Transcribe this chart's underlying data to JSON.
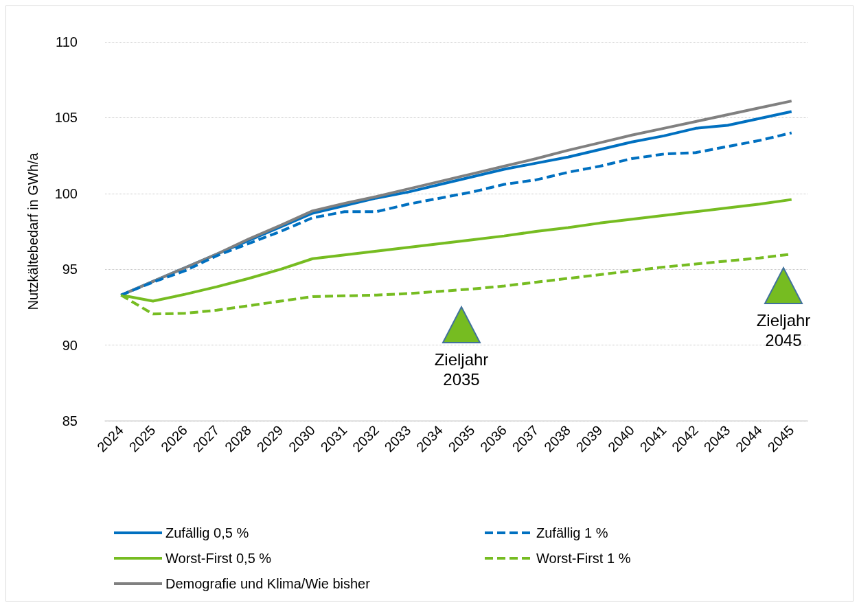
{
  "chart_data": {
    "type": "line",
    "ylabel": "Nutzkältebedarf in GWh/a",
    "categories": [
      "2024",
      "2025",
      "2026",
      "2027",
      "2028",
      "2029",
      "2030",
      "2031",
      "2032",
      "2033",
      "2034",
      "2035",
      "2036",
      "2037",
      "2038",
      "2039",
      "2040",
      "2041",
      "2042",
      "2043",
      "2044",
      "2045"
    ],
    "series": [
      {
        "name": "Zufällig 0,5 %",
        "color": "#0070c0",
        "line_style": "solid",
        "values": [
          93.3,
          94.2,
          95.1,
          96.0,
          96.9,
          97.8,
          98.7,
          99.2,
          99.7,
          100.1,
          100.6,
          101.1,
          101.6,
          102.0,
          102.4,
          102.9,
          103.4,
          103.8,
          104.3,
          104.5,
          104.95,
          105.4
        ]
      },
      {
        "name": "Zufällig 1 %",
        "color": "#0070c0",
        "line_style": "dashed",
        "values": [
          93.3,
          94.15,
          94.9,
          95.9,
          96.7,
          97.5,
          98.4,
          98.8,
          98.8,
          99.3,
          99.7,
          100.1,
          100.6,
          100.9,
          101.4,
          101.8,
          102.3,
          102.6,
          102.7,
          103.1,
          103.5,
          104.0
        ]
      },
      {
        "name": "Worst-First 0,5 %",
        "color": "#76bc21",
        "line_style": "solid",
        "values": [
          93.3,
          92.9,
          93.35,
          93.85,
          94.4,
          95.0,
          95.7,
          95.95,
          96.2,
          96.45,
          96.7,
          96.95,
          97.2,
          97.5,
          97.75,
          98.05,
          98.3,
          98.55,
          98.8,
          99.05,
          99.3,
          99.6
        ]
      },
      {
        "name": "Worst-First 1 %",
        "color": "#76bc21",
        "line_style": "dashed",
        "values": [
          93.3,
          92.05,
          92.1,
          92.3,
          92.6,
          92.9,
          93.2,
          93.25,
          93.3,
          93.4,
          93.55,
          93.7,
          93.9,
          94.15,
          94.4,
          94.65,
          94.9,
          95.15,
          95.35,
          95.55,
          95.75,
          96.0
        ]
      },
      {
        "name": "Demografie und Klima/Wie bisher",
        "color": "#808080",
        "line_style": "solid",
        "values": [
          93.3,
          94.2,
          95.1,
          96.0,
          97.0,
          97.9,
          98.85,
          99.35,
          99.8,
          100.3,
          100.8,
          101.3,
          101.8,
          102.3,
          102.85,
          103.35,
          103.85,
          104.3,
          104.75,
          105.2,
          105.65,
          106.1
        ]
      }
    ],
    "annotations": [
      "Zieljahr\n2035",
      "Zieljahr\n2045"
    ],
    "ylim": [
      85,
      110
    ],
    "yticks": [
      85,
      90,
      95,
      100,
      105,
      110
    ],
    "grid": "y",
    "legend": "bottom",
    "marker": "none"
  }
}
